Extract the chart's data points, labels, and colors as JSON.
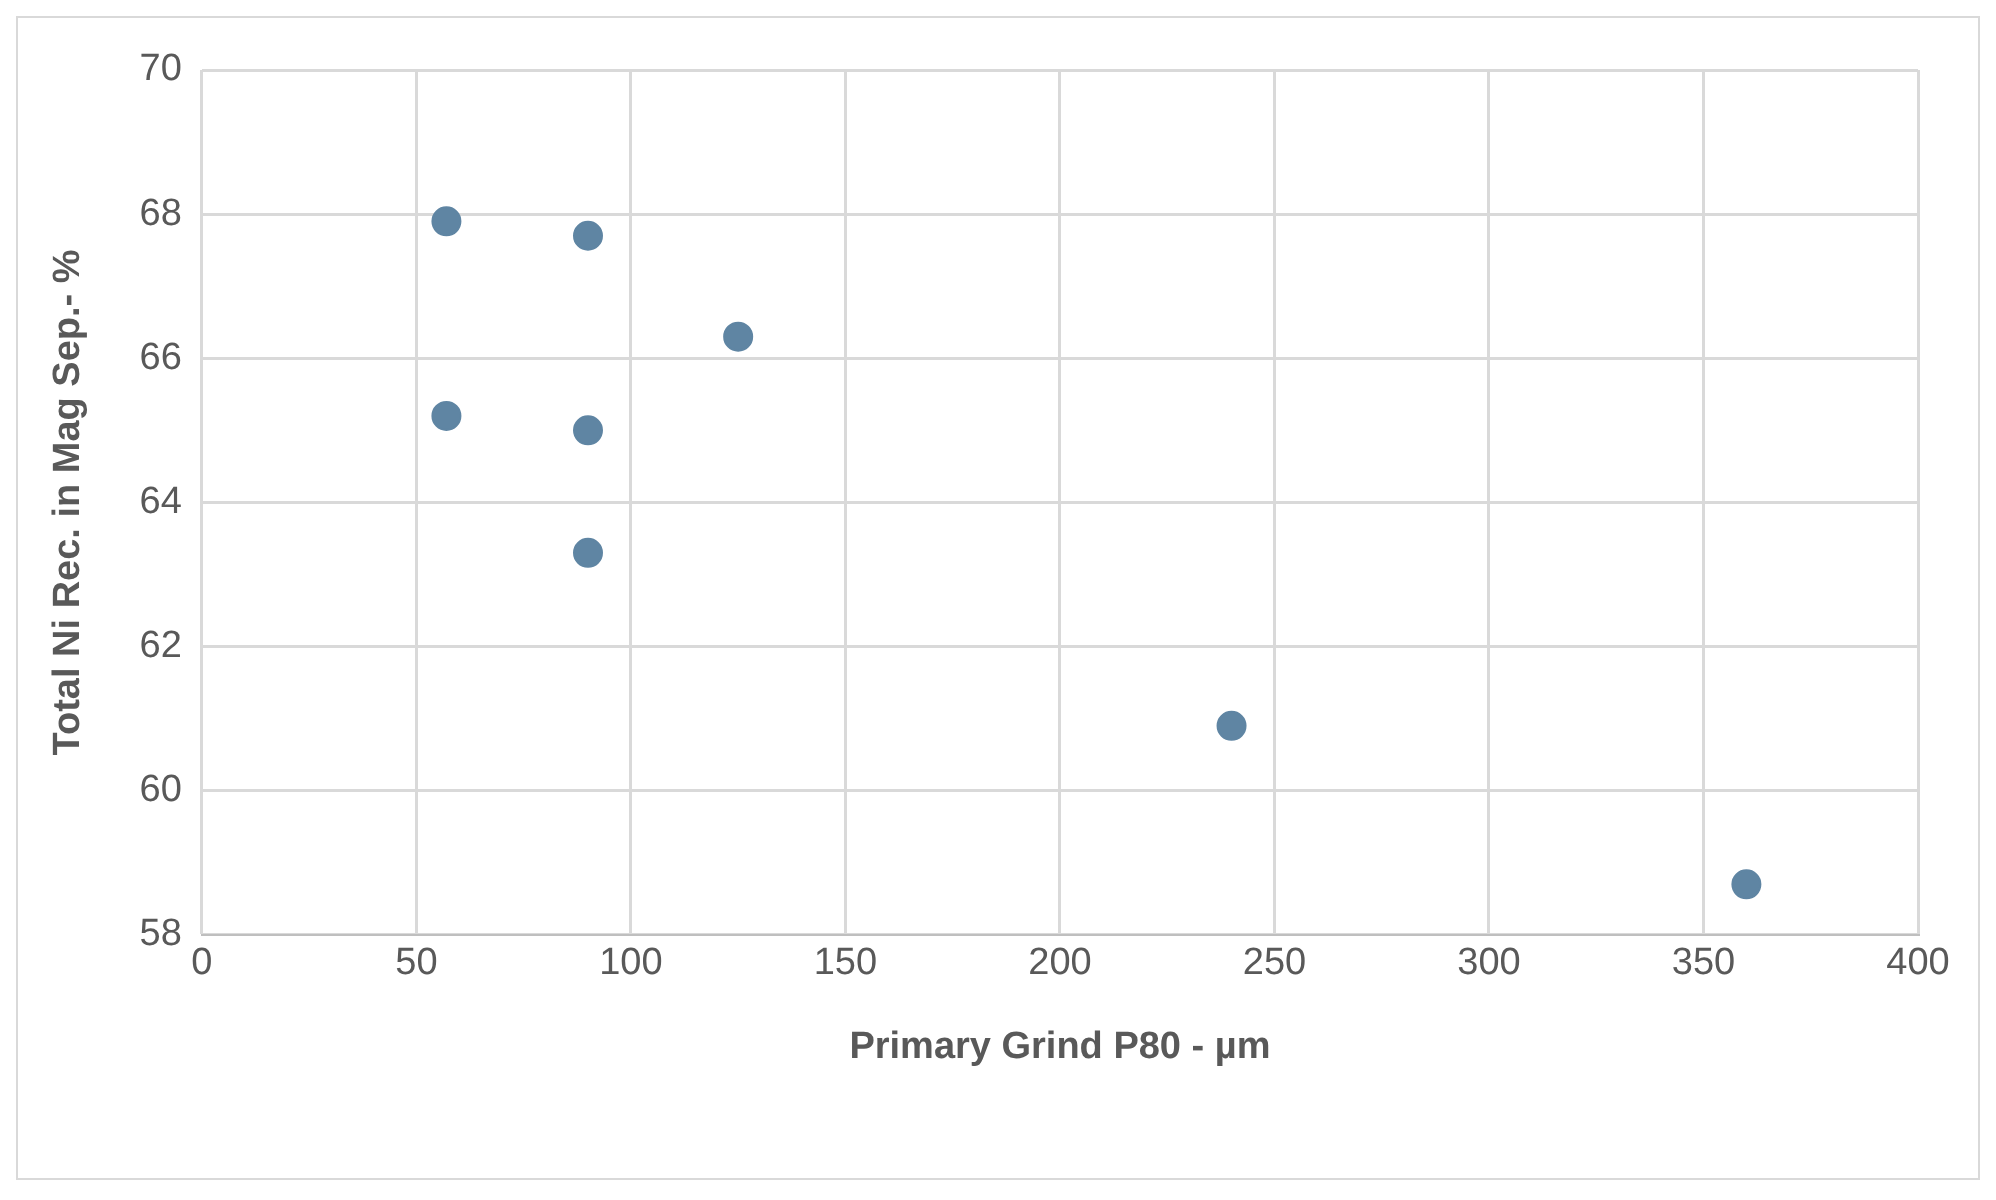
{
  "chart_data": {
    "type": "scatter",
    "xlabel": "Primary Grind P80 - µm",
    "ylabel": "Total Ni Rec. in Mag Sep.- %",
    "x": [
      57,
      57,
      90,
      90,
      90,
      125,
      240,
      360
    ],
    "values": [
      67.9,
      65.2,
      67.7,
      65.0,
      63.3,
      66.3,
      60.9,
      58.7
    ],
    "color": "#5f85a3",
    "marker": "circle",
    "xlim": [
      0,
      400
    ],
    "xticks": [
      0,
      50,
      100,
      150,
      200,
      250,
      300,
      350,
      400
    ],
    "ylim": [
      58,
      70
    ],
    "yticks": [
      58,
      60,
      62,
      64,
      66,
      68,
      70
    ],
    "grid": true,
    "legend": false
  }
}
